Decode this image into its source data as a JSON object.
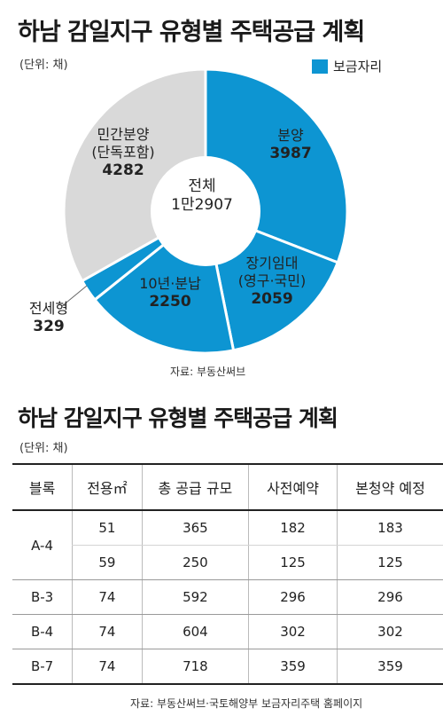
{
  "chart_data": {
    "type": "pie",
    "title": "하남 감일지구 유형별 주택공급 계획",
    "unit": "(단위: 채)",
    "legend": "보금자리",
    "center": {
      "label": "전체",
      "value": "1만2907"
    },
    "slices": [
      {
        "name": "분양",
        "value": 3987,
        "value_label": "3987",
        "highlight": true
      },
      {
        "name": "장기임대",
        "name_line2": "(영구·국민)",
        "value": 2059,
        "value_label": "2059",
        "highlight": true
      },
      {
        "name": "10년·분납",
        "value": 2250,
        "value_label": "2250",
        "highlight": true
      },
      {
        "name": "전세형",
        "value": 329,
        "value_label": "329",
        "highlight": true
      },
      {
        "name": "민간분양",
        "name_line2": "(단독포함)",
        "value": 4282,
        "value_label": "4282",
        "highlight": false
      }
    ],
    "source": "자료: 부동산써브",
    "colors": {
      "highlight": "#0d95d2",
      "other": "#d9d9d9",
      "border": "#ffffff"
    }
  },
  "table": {
    "title": "하남 감일지구 유형별 주택공급 계획",
    "unit": "(단위: 채)",
    "headers": [
      "블록",
      "전용㎡",
      "총 공급 규모",
      "사전예약",
      "본청약 예정"
    ],
    "rows": [
      {
        "block": "A-4",
        "area": "51",
        "total": "365",
        "pre": "182",
        "main": "183"
      },
      {
        "block": "",
        "area": "59",
        "total": "250",
        "pre": "125",
        "main": "125"
      },
      {
        "block": "B-3",
        "area": "74",
        "total": "592",
        "pre": "296",
        "main": "296"
      },
      {
        "block": "B-4",
        "area": "74",
        "total": "604",
        "pre": "302",
        "main": "302"
      },
      {
        "block": "B-7",
        "area": "74",
        "total": "718",
        "pre": "359",
        "main": "359"
      }
    ],
    "source": "자료: 부동산써브·국토해양부 보금자리주택 홈페이지"
  }
}
